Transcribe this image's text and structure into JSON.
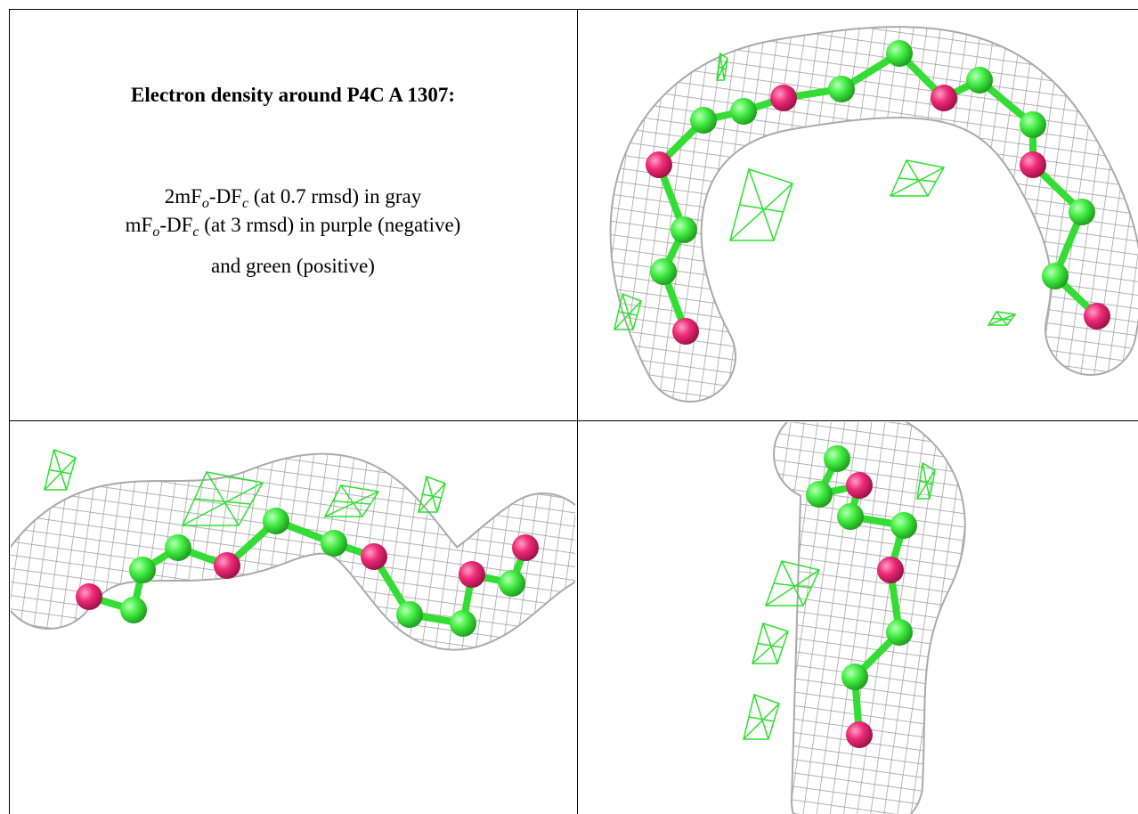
{
  "header": {
    "title": "Electron density around P4C A 1307:"
  },
  "legend": {
    "lines": [
      [
        "2mF",
        "o",
        "-DF",
        "c",
        " (at 0.7 rmsd) in gray"
      ],
      [
        "mF",
        "o",
        "-DF",
        "c",
        " (at 3 rmsd) in purple (negative)"
      ],
      [
        "and green (positive)"
      ]
    ]
  }
}
